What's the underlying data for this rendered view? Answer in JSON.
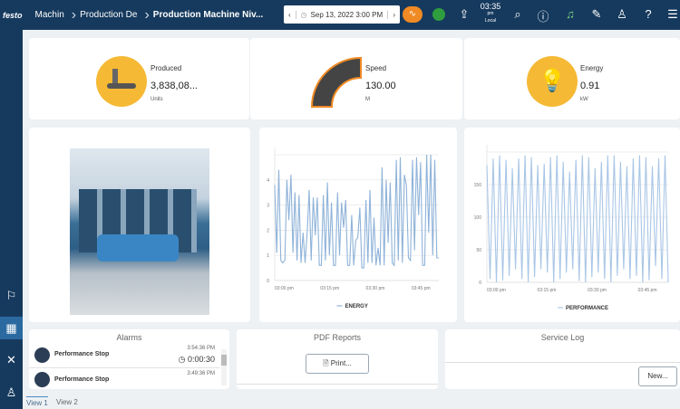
{
  "header": {
    "logo": "festo",
    "breadcrumbs": [
      "Machin",
      "Production De",
      "Production Machine Niv..."
    ],
    "date": "Sep 13, 2022 3:00 PM",
    "clock_time": "03:35",
    "clock_ampm": "pm",
    "clock_zone": "Local"
  },
  "kpis": [
    {
      "label": "Produced",
      "value": "3,838,08...",
      "unit": "Units",
      "icon": "conveyor-icon"
    },
    {
      "label": "Speed",
      "value": "130.00",
      "unit": "M",
      "icon": "gauge-icon"
    },
    {
      "label": "Energy",
      "value": "0.91",
      "unit": "kW",
      "icon": "lightbulb-icon"
    }
  ],
  "chart_data": [
    {
      "type": "line",
      "legend": "ENERGY",
      "legend_position": "bottom",
      "xticks": [
        "03:00 pm",
        "03:15 pm",
        "03:30 pm",
        "03:45 pm"
      ],
      "yticks": [
        "0",
        "1",
        "2",
        "3",
        "4"
      ],
      "ylim": [
        0,
        5
      ],
      "grid": true,
      "color": "#8fb3d9",
      "values": [
        3.8,
        1.1,
        4.4,
        0.8,
        0.7,
        0.8,
        4.0,
        2.4,
        4.2,
        1.1,
        3.5,
        0.8,
        3.4,
        0.7,
        1.9,
        0.7,
        1.9,
        3.6,
        0.8,
        3.3,
        1.8,
        3.3,
        0.6,
        0.6,
        3.4,
        0.8,
        3.9,
        1.0,
        3.1,
        0.6,
        0.6,
        3.5,
        1.0,
        3.1,
        2.1,
        3.2,
        0.6,
        0.6,
        2.6,
        0.6,
        1.6,
        1.7,
        2.9,
        0.5,
        0.5,
        3.2,
        0.7,
        3.6,
        0.7,
        2.5,
        0.6,
        1.3,
        0.6,
        4.5,
        0.6,
        4.0,
        1.5,
        3.9,
        0.7,
        0.6,
        4.8,
        0.8,
        4.9,
        0.7,
        4.2,
        3.8,
        0.9,
        0.8,
        4.8,
        1.2,
        4.9,
        2.6,
        4.7,
        0.6,
        0.6,
        5.0,
        1.9,
        5.0,
        1.0,
        4.8,
        0.9,
        0.9
      ]
    },
    {
      "type": "line",
      "legend": "PERFORMANCE",
      "legend_position": "bottom",
      "xticks": [
        "03:00 pm",
        "03:15 pm",
        "03:30 pm",
        "03:45 pm"
      ],
      "yticks": [
        "0",
        "50",
        "100",
        "150"
      ],
      "ylim": [
        0,
        200
      ],
      "grid": true,
      "color": "#a9c6e6",
      "values": [
        180,
        5,
        190,
        0,
        195,
        3,
        188,
        10,
        175,
        20,
        190,
        5,
        195,
        0,
        192,
        8,
        180,
        20,
        182,
        15,
        192,
        0,
        195,
        5,
        185,
        15,
        170,
        20,
        188,
        2,
        195,
        0,
        192,
        8,
        175,
        15,
        185,
        5,
        195,
        0,
        195,
        10,
        185,
        20,
        178,
        5,
        190,
        10,
        195,
        0,
        192,
        3,
        178,
        25,
        190,
        5,
        195,
        0
      ]
    }
  ],
  "alarms": {
    "title": "Alarms",
    "items": [
      {
        "name": "Performance Stop",
        "time": "3:54:36 PM",
        "duration": "0:00:30"
      },
      {
        "name": "Performance Stop",
        "time": "3:49:36 PM"
      }
    ]
  },
  "pdf": {
    "title": "PDF Reports",
    "print": "Print..."
  },
  "service": {
    "title": "Service Log",
    "new": "New..."
  },
  "tabs": [
    "View 1",
    "View 2"
  ]
}
